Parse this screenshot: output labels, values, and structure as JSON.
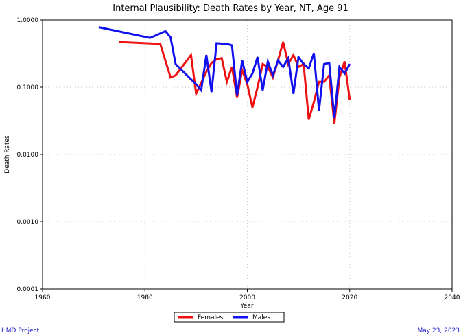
{
  "chart_data": {
    "type": "line",
    "title": "Internal Plausibility: Death Rates by Year, NT, Age 91",
    "xlabel": "Year",
    "ylabel": "Death Rates",
    "xlim": [
      1960,
      2040
    ],
    "ylim": [
      0.0001,
      1.0
    ],
    "yscale": "log",
    "grid": true,
    "legend_position": "bottom-center",
    "x_ticks": [
      1960,
      1980,
      2000,
      2020,
      2040
    ],
    "y_ticks": [
      0.0001,
      0.001,
      0.01,
      0.1,
      1.0
    ],
    "x_tick_labels": [
      "1960",
      "1980",
      "2000",
      "2020",
      "2040"
    ],
    "y_tick_labels": [
      "0.0001",
      "0.0010",
      "0.0100",
      "0.1000",
      "1.0000"
    ],
    "series": [
      {
        "name": "Females",
        "color": "#ee1111",
        "x": [
          1975,
          1983,
          1985,
          1986,
          1989,
          1990,
          1992,
          1993,
          1994,
          1995,
          1996,
          1997,
          1998,
          1999,
          2000,
          2001,
          2002,
          2003,
          2004,
          2005,
          2006,
          2007,
          2008,
          2009,
          2010,
          2011,
          2012,
          2013,
          2014,
          2015,
          2016,
          2017,
          2018,
          2019,
          2020
        ],
        "y": [
          0.47,
          0.44,
          0.14,
          0.15,
          0.3,
          0.08,
          0.17,
          0.23,
          0.26,
          0.27,
          0.12,
          0.2,
          0.07,
          0.18,
          0.11,
          0.05,
          0.1,
          0.22,
          0.2,
          0.14,
          0.25,
          0.47,
          0.22,
          0.3,
          0.2,
          0.22,
          0.033,
          0.06,
          0.12,
          0.12,
          0.15,
          0.029,
          0.14,
          0.24,
          0.065
        ]
      },
      {
        "name": "Males",
        "color": "#1111ee",
        "x": [
          1971,
          1981,
          1984,
          1985,
          1986,
          1990,
          1991,
          1992,
          1993,
          1994,
          1996,
          1997,
          1998,
          1999,
          2000,
          2001,
          2002,
          2003,
          2004,
          2005,
          2006,
          2007,
          2008,
          2009,
          2010,
          2011,
          2012,
          2013,
          2014,
          2015,
          2016,
          2017,
          2018,
          2019,
          2020
        ],
        "y": [
          0.78,
          0.54,
          0.68,
          0.55,
          0.22,
          0.11,
          0.09,
          0.3,
          0.085,
          0.45,
          0.44,
          0.42,
          0.075,
          0.25,
          0.12,
          0.16,
          0.28,
          0.09,
          0.24,
          0.15,
          0.25,
          0.2,
          0.27,
          0.08,
          0.28,
          0.22,
          0.19,
          0.32,
          0.045,
          0.22,
          0.23,
          0.035,
          0.2,
          0.16,
          0.22
        ]
      }
    ]
  },
  "footer": {
    "left": "HMD Project",
    "right": "May 23, 2023"
  }
}
